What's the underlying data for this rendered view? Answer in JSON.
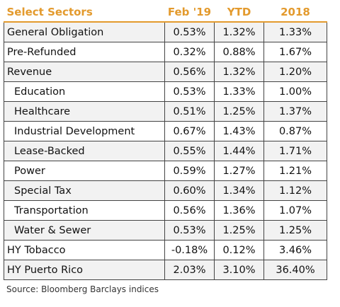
{
  "table": {
    "header": [
      "Select Sectors",
      "Feb '19",
      "YTD",
      "2018"
    ],
    "rows": [
      {
        "level": 0,
        "cells": [
          "General Obligation",
          "0.53%",
          "1.32%",
          "1.33%"
        ]
      },
      {
        "level": 0,
        "cells": [
          "Pre-Refunded",
          "0.32%",
          "0.88%",
          "1.67%"
        ]
      },
      {
        "level": 0,
        "cells": [
          "Revenue",
          "0.56%",
          "1.32%",
          "1.20%"
        ]
      },
      {
        "level": 1,
        "cells": [
          "Education",
          "0.53%",
          "1.33%",
          "1.00%"
        ]
      },
      {
        "level": 1,
        "cells": [
          "Healthcare",
          "0.51%",
          "1.25%",
          "1.37%"
        ]
      },
      {
        "level": 1,
        "cells": [
          "Industrial Development",
          "0.67%",
          "1.43%",
          "0.87%"
        ]
      },
      {
        "level": 1,
        "cells": [
          "Lease-Backed",
          "0.55%",
          "1.44%",
          "1.71%"
        ]
      },
      {
        "level": 1,
        "cells": [
          "Power",
          "0.59%",
          "1.27%",
          "1.21%"
        ]
      },
      {
        "level": 1,
        "cells": [
          "Special Tax",
          "0.60%",
          "1.34%",
          "1.12%"
        ]
      },
      {
        "level": 1,
        "cells": [
          "Transportation",
          "0.56%",
          "1.36%",
          "1.07%"
        ]
      },
      {
        "level": 1,
        "cells": [
          "Water & Sewer",
          "0.53%",
          "1.25%",
          "1.25%"
        ]
      },
      {
        "level": 0,
        "cells": [
          "HY Tobacco",
          "-0.18%",
          "0.12%",
          "3.46%"
        ]
      },
      {
        "level": 0,
        "cells": [
          "HY Puerto Rico",
          "2.03%",
          "3.10%",
          "36.40%"
        ]
      }
    ],
    "source": "Source: Bloomberg Barclays indices"
  }
}
